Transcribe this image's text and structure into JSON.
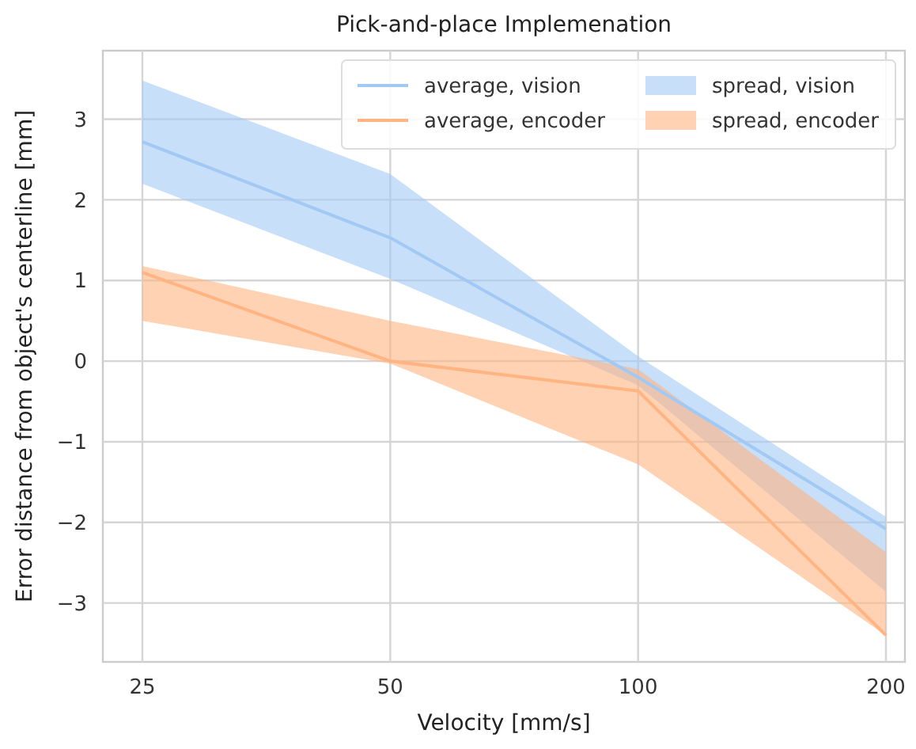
{
  "chart_data": {
    "type": "line",
    "title": "Pick-and-place Implemenation",
    "xlabel": "Velocity [mm/s]",
    "ylabel": "Error distance from object's centerline [mm]",
    "categories": [
      "25",
      "50",
      "100",
      "200"
    ],
    "series": [
      {
        "name": "average, vision",
        "color": "#a1c9f4",
        "values": [
          2.72,
          1.53,
          -0.2,
          -2.08
        ]
      },
      {
        "name": "average, encoder",
        "color": "#ffb482",
        "values": [
          1.1,
          0.0,
          -0.37,
          -3.4
        ]
      },
      {
        "type": "area",
        "name": "spread, vision",
        "color": "#a1c9f4",
        "values": [
          null,
          null,
          null,
          null
        ],
        "lower": [
          2.2,
          1.02,
          -0.3,
          -2.86
        ],
        "upper": [
          3.48,
          2.32,
          0.06,
          -1.93
        ]
      },
      {
        "type": "area",
        "name": "spread, encoder",
        "color": "#ffb482",
        "values": [
          null,
          null,
          null,
          null
        ],
        "lower": [
          0.5,
          -0.03,
          -1.28,
          -3.4
        ],
        "upper": [
          1.18,
          0.5,
          -0.1,
          -2.37
        ]
      }
    ],
    "ylim": [
      -3.73,
      3.85
    ],
    "yticks": [
      {
        "value": -3,
        "label": "−3"
      },
      {
        "value": -2,
        "label": "−2"
      },
      {
        "value": -1,
        "label": "−1"
      },
      0,
      1,
      2,
      3
    ],
    "grid": true,
    "legend": "top right"
  }
}
